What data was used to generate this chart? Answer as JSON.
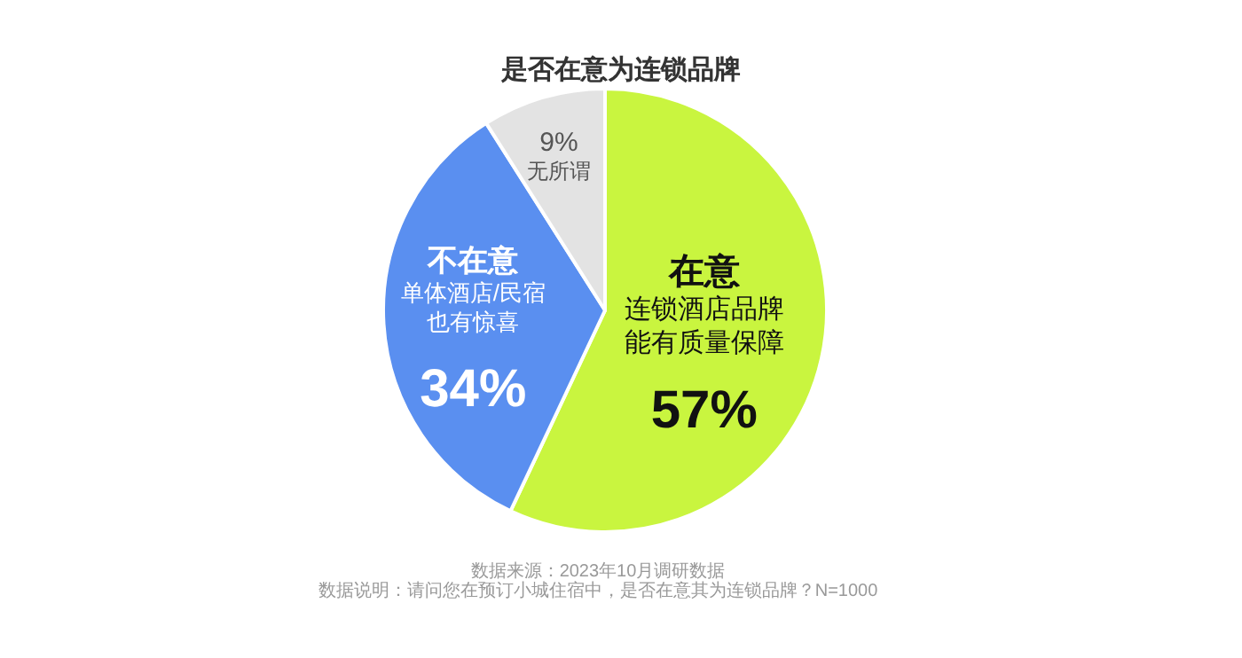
{
  "chart_data": {
    "type": "pie",
    "title": "是否在意为连锁品牌",
    "categories": [
      "在意",
      "不在意",
      "无所谓"
    ],
    "values": [
      57,
      34,
      9
    ],
    "value_labels": [
      "57%",
      "34%",
      "9%"
    ],
    "colors": [
      "#c9f53f",
      "#5a8ff0",
      "#e3e3e3"
    ],
    "annotations": [
      {
        "text": "连锁酒店品牌能有质量保障",
        "x": "在意"
      },
      {
        "text": "单体酒店/民宿也有惊喜",
        "x": "不在意"
      },
      "数据来源：2023年10月调研数据",
      "数据说明：请问您在预订小城住宿中，是否在意其为连锁品牌？N=1000"
    ]
  }
}
